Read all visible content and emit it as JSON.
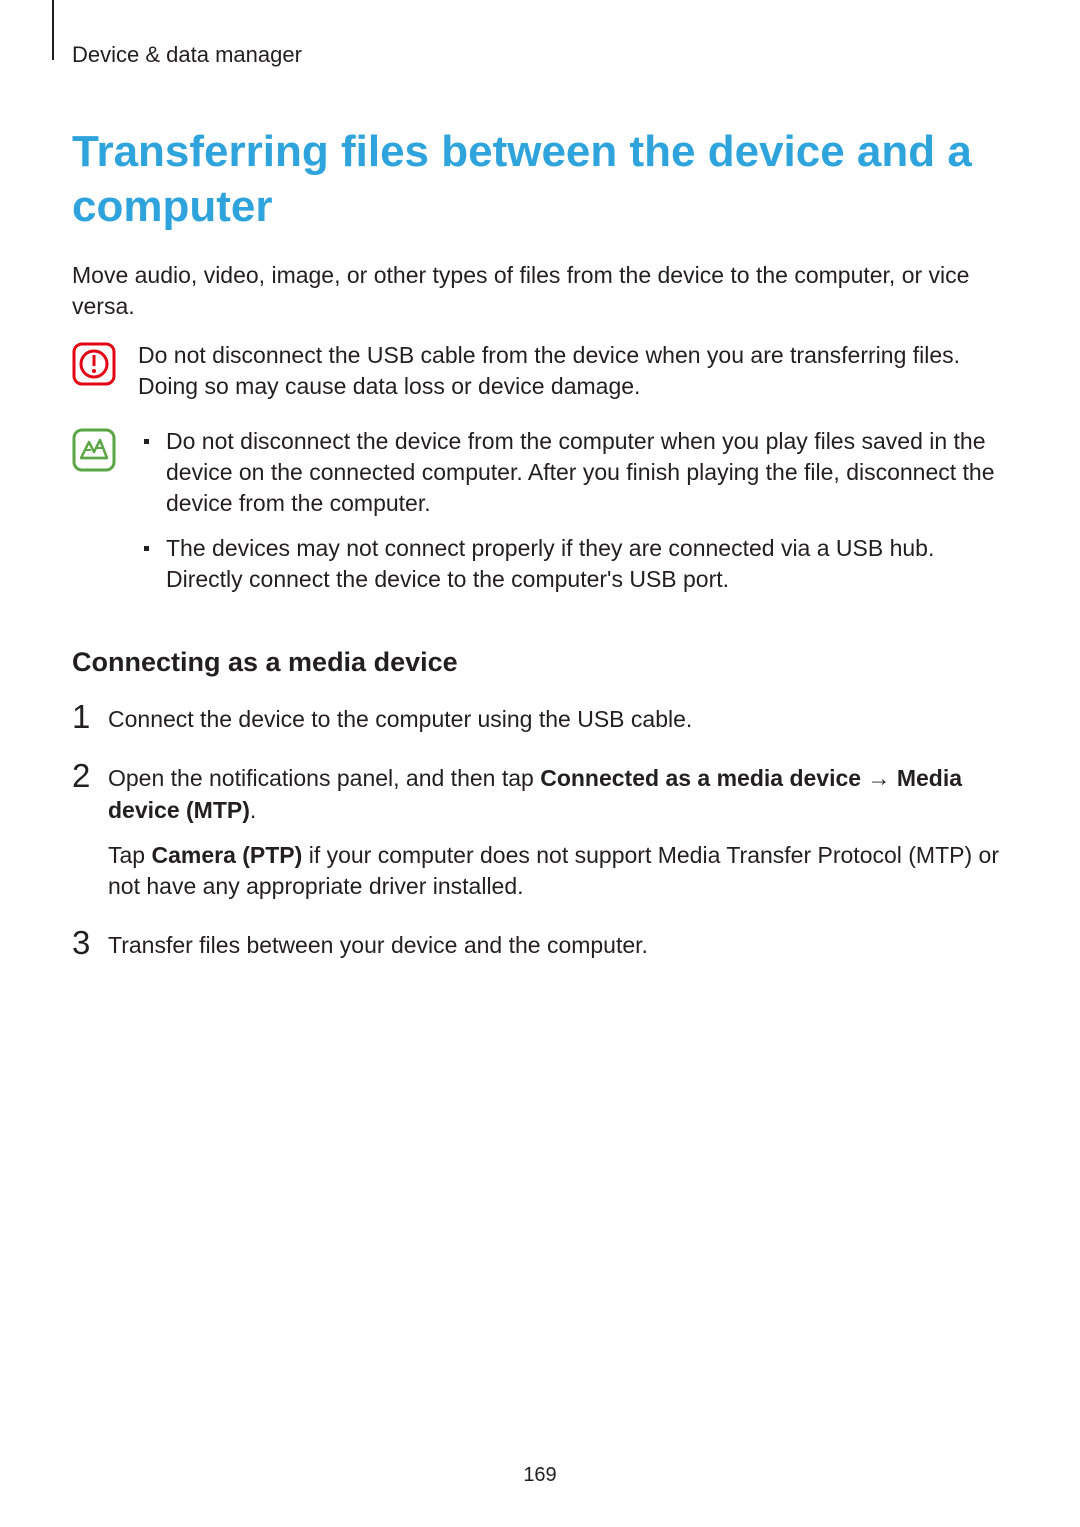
{
  "breadcrumb": "Device & data manager",
  "title": "Transferring files between the device and a computer",
  "intro": "Move audio, video, image, or other types of files from the device to the computer, or vice versa.",
  "caution": {
    "stroke": "#e30613",
    "text": "Do not disconnect the USB cable from the device when you are transferring files. Doing so may cause data loss or device damage."
  },
  "note": {
    "stroke": "#5aa544",
    "bullets": [
      "Do not disconnect the device from the computer when you play files saved in the device on the connected computer. After you finish playing the file, disconnect the device from the computer.",
      "The devices may not connect properly if they are connected via a USB hub. Directly connect the device to the computer's USB port."
    ]
  },
  "subheading": "Connecting as a media device",
  "steps": [
    {
      "num": "1",
      "paragraphs": [
        {
          "parts": [
            {
              "t": "Connect the device to the computer using the USB cable."
            }
          ]
        }
      ]
    },
    {
      "num": "2",
      "paragraphs": [
        {
          "parts": [
            {
              "t": "Open the notifications panel, and then tap "
            },
            {
              "t": "Connected as a media device",
              "b": true
            },
            {
              "t": " → "
            },
            {
              "t": "Media device (MTP)",
              "b": true
            },
            {
              "t": "."
            }
          ]
        },
        {
          "parts": [
            {
              "t": "Tap "
            },
            {
              "t": "Camera (PTP)",
              "b": true
            },
            {
              "t": " if your computer does not support Media Transfer Protocol (MTP) or not have any appropriate driver installed."
            }
          ]
        }
      ]
    },
    {
      "num": "3",
      "paragraphs": [
        {
          "parts": [
            {
              "t": "Transfer files between your device and the computer."
            }
          ]
        }
      ]
    }
  ],
  "pageNumber": "169"
}
